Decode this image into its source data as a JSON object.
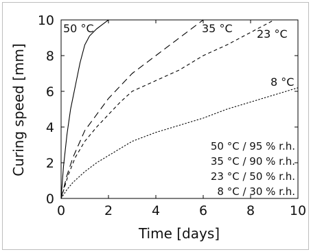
{
  "chart_data": {
    "type": "line",
    "title": "",
    "xlabel": "Time [days]",
    "ylabel": "Curing speed [mm]",
    "xlim": [
      0,
      10
    ],
    "ylim": [
      0,
      10
    ],
    "xticks": [
      0,
      2,
      4,
      6,
      8,
      10
    ],
    "yticks": [
      0,
      2,
      4,
      6,
      8,
      10
    ],
    "grid": false,
    "legend_position": "lower-right",
    "legend_entries": [
      "50 °C / 95 % r.h.",
      "35 °C / 90 % r.h.",
      "23 °C / 50 % r.h.",
      "8 °C / 30 % r.h."
    ],
    "series": [
      {
        "name": "50 °C",
        "style": "solid",
        "color": "#000000",
        "x": [
          0,
          0.1,
          0.25,
          0.4,
          0.6,
          0.8,
          1.0,
          1.2,
          1.5,
          1.8,
          2.0
        ],
        "y": [
          0,
          1.8,
          3.6,
          5.0,
          6.3,
          7.6,
          8.6,
          9.1,
          9.5,
          9.8,
          10.0
        ]
      },
      {
        "name": "35 °C",
        "style": "dashed",
        "color": "#000000",
        "x": [
          0,
          0.25,
          0.5,
          1.0,
          1.5,
          2.0,
          3.0,
          4.0,
          5.0,
          6.0
        ],
        "y": [
          0,
          1.3,
          2.3,
          3.8,
          4.7,
          5.6,
          7.0,
          8.0,
          9.0,
          10.0
        ]
      },
      {
        "name": "23 °C",
        "style": "short-dashed",
        "color": "#000000",
        "x": [
          0,
          0.3,
          0.6,
          1.0,
          1.5,
          2.0,
          2.5,
          3.0,
          4.0,
          5.0,
          6.0,
          7.0,
          8.0,
          9.0
        ],
        "y": [
          0,
          1.3,
          2.3,
          3.2,
          4.0,
          4.7,
          5.4,
          6.0,
          6.6,
          7.2,
          8.0,
          8.6,
          9.3,
          10.0
        ]
      },
      {
        "name": "8 °C",
        "style": "dotted",
        "color": "#000000",
        "x": [
          0,
          0.25,
          0.5,
          1.0,
          1.5,
          2.0,
          3.0,
          4.0,
          5.0,
          6.0,
          7.0,
          8.0,
          9.0,
          10.0
        ],
        "y": [
          0,
          0.5,
          0.9,
          1.5,
          2.0,
          2.4,
          3.2,
          3.7,
          4.1,
          4.5,
          5.0,
          5.4,
          5.8,
          6.2
        ]
      }
    ]
  }
}
